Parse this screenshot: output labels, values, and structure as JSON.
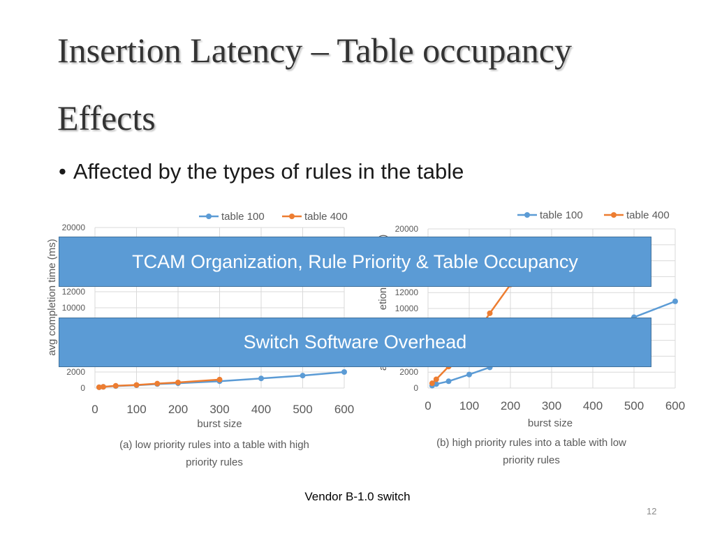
{
  "slide": {
    "title_line1": "Insertion Latency – Table occupancy",
    "title_line2": "Effects",
    "bullet": "Affected by the types of rules in the table",
    "banner1": "TCAM Organization, Rule Priority & Table Occupancy",
    "banner2": "Switch Software Overhead",
    "footer": "Vendor B-1.0 switch",
    "page_number": "12"
  },
  "colors": {
    "table100": "#5b9bd5",
    "table400": "#ed7d31",
    "grid": "#d9d9d9",
    "banner": "#5b9bd5"
  },
  "chart_data": [
    {
      "type": "line",
      "ylabel": "avg completion time (ms)",
      "xlabel": "burst size",
      "caption_line1": "(a) low priority rules into a table with high",
      "caption_line2": "priority rules",
      "xlim": [
        0,
        600
      ],
      "ylim": [
        0,
        20000
      ],
      "x_ticks": [
        "0",
        "100",
        "200",
        "300",
        "400",
        "500",
        "600"
      ],
      "y_ticks_visible": [
        "0",
        "2000",
        "10000",
        "12000",
        "20000"
      ],
      "series": [
        {
          "name": "table 100",
          "x": [
            10,
            20,
            50,
            100,
            150,
            200,
            300,
            400,
            500,
            600
          ],
          "y": [
            100,
            150,
            250,
            350,
            500,
            600,
            850,
            1200,
            1550,
            2000
          ]
        },
        {
          "name": "table 400",
          "x": [
            10,
            20,
            50,
            100,
            150,
            200,
            300
          ],
          "y": [
            100,
            150,
            280,
            380,
            550,
            700,
            1050
          ]
        }
      ]
    },
    {
      "type": "line",
      "ylabel": "avg completion time (ms)",
      "ylabel_visible_fragment_top": "s)",
      "ylabel_visible_fragment_mid": "etion",
      "ylabel_visible_fragment_bot": "a",
      "xlabel": "burst size",
      "caption_line1": "(b) high priority rules into a table with low",
      "caption_line2": "priority rules",
      "xlim": [
        0,
        600
      ],
      "ylim": [
        0,
        20000
      ],
      "x_ticks": [
        "0",
        "100",
        "200",
        "300",
        "400",
        "500",
        "600"
      ],
      "y_ticks_visible": [
        "0",
        "2000",
        "10000",
        "12000",
        "20000"
      ],
      "series": [
        {
          "name": "table 100",
          "x": [
            10,
            20,
            50,
            100,
            150,
            500,
            600
          ],
          "y": [
            300,
            500,
            850,
            1700,
            2600,
            8900,
            10900
          ]
        },
        {
          "name": "table 400",
          "x": [
            10,
            20,
            50,
            100,
            150,
            200
          ],
          "y": [
            600,
            1100,
            2700,
            5500,
            9400,
            13000
          ]
        }
      ]
    }
  ]
}
